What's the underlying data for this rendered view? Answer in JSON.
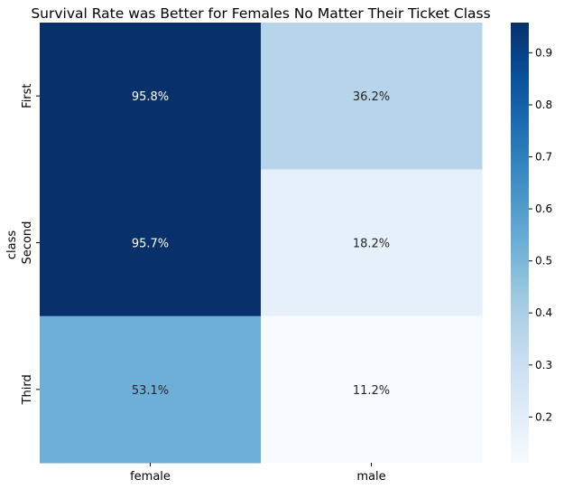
{
  "chart_data": {
    "type": "heatmap",
    "title": "Survival Rate was Better for Females No Matter Their Ticket Class",
    "xlabel": "",
    "ylabel": "class",
    "x_categories": [
      "female",
      "male"
    ],
    "y_categories": [
      "First",
      "Second",
      "Third"
    ],
    "values": [
      [
        0.958,
        0.362
      ],
      [
        0.957,
        0.182
      ],
      [
        0.531,
        0.112
      ]
    ],
    "cell_labels": [
      [
        "95.8%",
        "36.2%"
      ],
      [
        "95.7%",
        "18.2%"
      ],
      [
        "53.1%",
        "11.2%"
      ]
    ],
    "colormap": "Blues",
    "colorbar": {
      "min": 0.112,
      "max": 0.958,
      "ticks": [
        0.2,
        0.3,
        0.4,
        0.5,
        0.6,
        0.7,
        0.8,
        0.9
      ],
      "tick_labels": [
        "0.2",
        "0.3",
        "0.4",
        "0.5",
        "0.6",
        "0.7",
        "0.8",
        "0.9"
      ]
    }
  }
}
